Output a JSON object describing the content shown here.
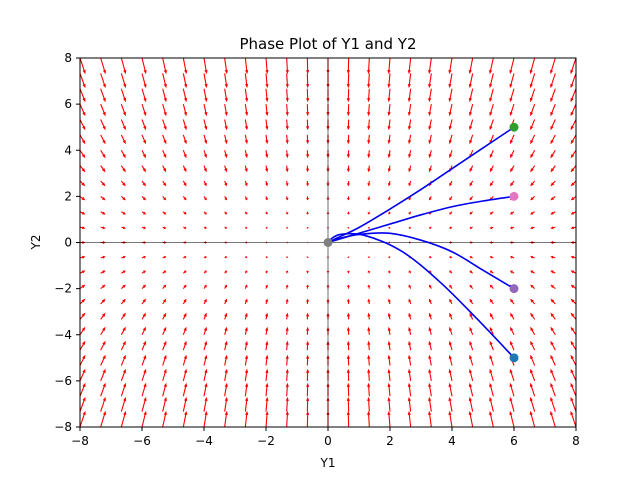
{
  "chart_data": {
    "type": "line",
    "title": "Phase Plot of Y1 and Y2",
    "xlabel": "Y1",
    "ylabel": "Y2",
    "xlim": [
      -8,
      8
    ],
    "ylim": [
      -8,
      8
    ],
    "xticks": [
      "−8",
      "−6",
      "−4",
      "−2",
      "0",
      "2",
      "4",
      "6",
      "8"
    ],
    "yticks": [
      "−8",
      "−6",
      "−4",
      "−2",
      "0",
      "2",
      "4",
      "6",
      "8"
    ],
    "grid": false,
    "vector_field": {
      "description": "red quiver arrows",
      "color": "#ff0000",
      "x_range": [
        -8,
        8
      ],
      "y_range": [
        -8,
        8
      ],
      "count": 25
    },
    "series": [
      {
        "x": [
          6,
          4.8,
          3.6,
          2.4,
          1.2,
          0.4,
          0.05,
          0
        ],
        "y": [
          -5,
          -3.3,
          -1.7,
          -0.4,
          0.3,
          0.35,
          0.1,
          0
        ]
      },
      {
        "x": [
          6,
          5.0,
          4.0,
          3.0,
          2.0,
          1.0,
          0.3,
          0
        ],
        "y": [
          -2,
          -1.2,
          -0.4,
          0.1,
          0.4,
          0.35,
          0.15,
          0
        ]
      },
      {
        "x": [
          6,
          5.0,
          4.0,
          3.0,
          2.0,
          1.0,
          0.3,
          0
        ],
        "y": [
          2,
          1.8,
          1.55,
          1.2,
          0.8,
          0.4,
          0.12,
          0
        ]
      },
      {
        "x": [
          6,
          5.0,
          4.0,
          3.0,
          2.0,
          1.0,
          0.3,
          0
        ],
        "y": [
          5,
          4.1,
          3.2,
          2.3,
          1.45,
          0.65,
          0.2,
          0
        ]
      }
    ],
    "start_points": [
      {
        "x": 6,
        "y": -5,
        "color": "#1f77b4"
      },
      {
        "x": 6,
        "y": -2,
        "color": "#9467bd"
      },
      {
        "x": 6,
        "y": 2,
        "color": "#e377c2"
      },
      {
        "x": 6,
        "y": 5,
        "color": "#2ca02c"
      }
    ],
    "end_points": [
      {
        "x": 0,
        "y": 0,
        "color": "#7f7f7f"
      }
    ],
    "line_color": "#0000ee"
  }
}
